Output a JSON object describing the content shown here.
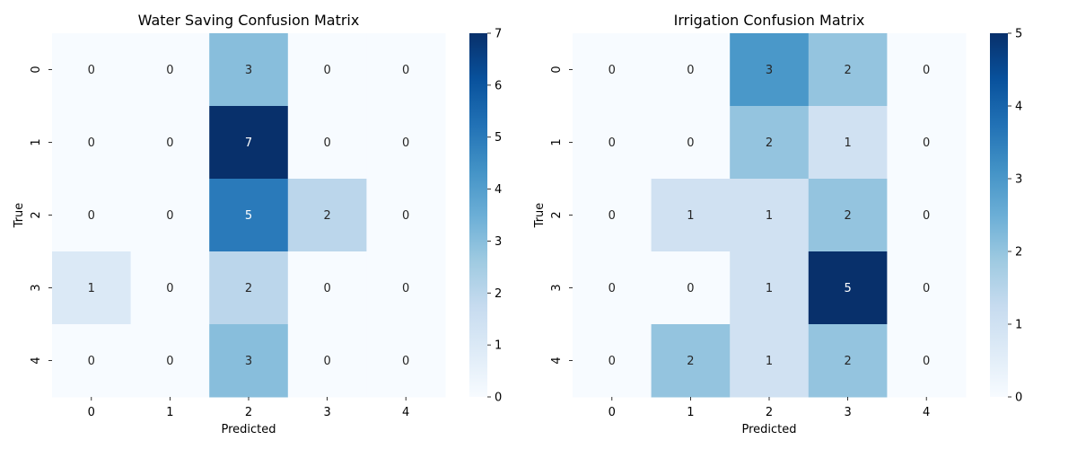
{
  "chart_data": [
    {
      "type": "heatmap",
      "title": "Water Saving Confusion Matrix",
      "xlabel": "Predicted",
      "ylabel": "True",
      "x_categories": [
        "0",
        "1",
        "2",
        "3",
        "4"
      ],
      "y_categories": [
        "0",
        "1",
        "2",
        "3",
        "4"
      ],
      "values": [
        [
          0,
          0,
          3,
          0,
          0
        ],
        [
          0,
          0,
          7,
          0,
          0
        ],
        [
          0,
          0,
          5,
          2,
          0
        ],
        [
          1,
          0,
          2,
          0,
          0
        ],
        [
          0,
          0,
          3,
          0,
          0
        ]
      ],
      "colorscale": "Blues",
      "vmin": 0,
      "vmax": 7,
      "colorbar_ticks": [
        0,
        1,
        2,
        3,
        4,
        5,
        6,
        7
      ],
      "grid": false
    },
    {
      "type": "heatmap",
      "title": "Irrigation Confusion Matrix",
      "xlabel": "Predicted",
      "ylabel": "True",
      "x_categories": [
        "0",
        "1",
        "2",
        "3",
        "4"
      ],
      "y_categories": [
        "0",
        "1",
        "2",
        "3",
        "4"
      ],
      "values": [
        [
          0,
          0,
          3,
          2,
          0
        ],
        [
          0,
          0,
          2,
          1,
          0
        ],
        [
          0,
          1,
          1,
          2,
          0
        ],
        [
          0,
          0,
          1,
          5,
          0
        ],
        [
          0,
          2,
          1,
          2,
          0
        ]
      ],
      "colorscale": "Blues",
      "vmin": 0,
      "vmax": 5,
      "colorbar_ticks": [
        0,
        1,
        2,
        3,
        4,
        5
      ],
      "grid": false
    }
  ]
}
